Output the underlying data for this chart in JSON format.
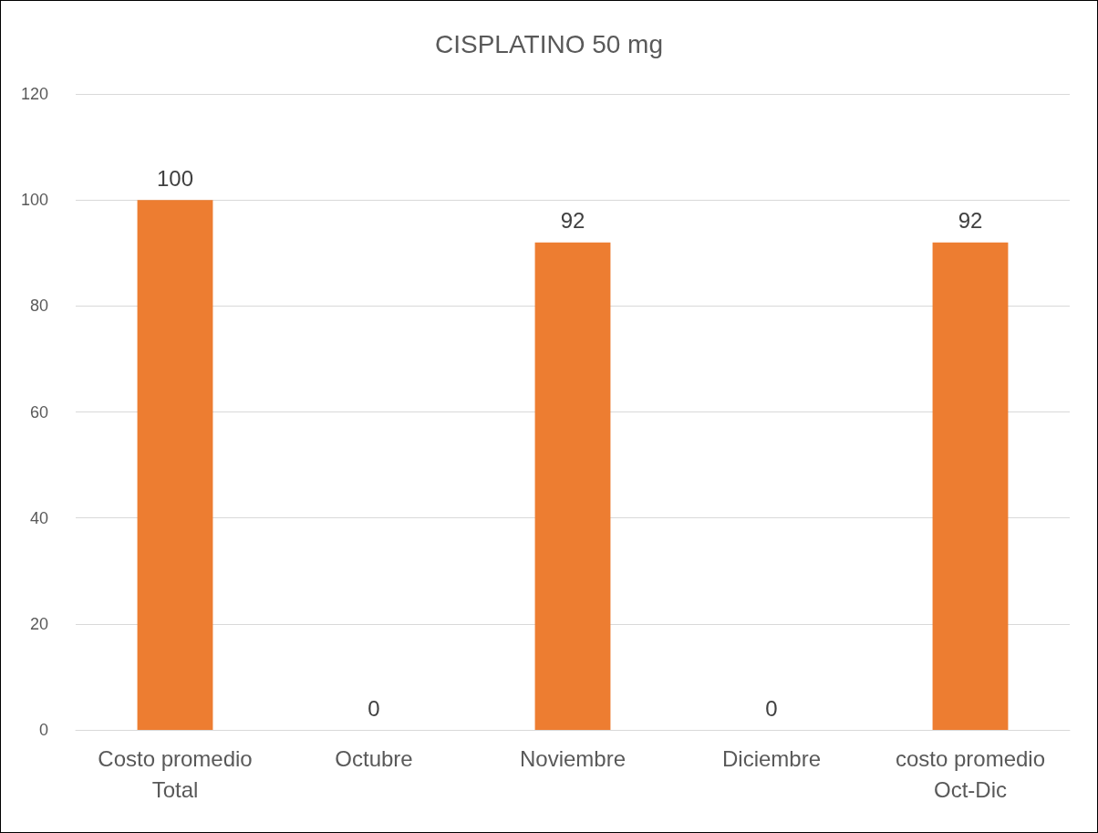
{
  "chart_data": {
    "type": "bar",
    "title": "CISPLATINO 50 mg",
    "categories": [
      "Costo promedio\nTotal",
      "Octubre",
      "Noviembre",
      "Diciembre",
      "costo promedio\nOct-Dic"
    ],
    "values": [
      100,
      0,
      92,
      0,
      92
    ],
    "color": "#ed7d31",
    "ylim": [
      0,
      120
    ],
    "yticks": [
      0,
      20,
      40,
      60,
      80,
      100,
      120
    ],
    "grid": "y",
    "data_labels": true
  }
}
